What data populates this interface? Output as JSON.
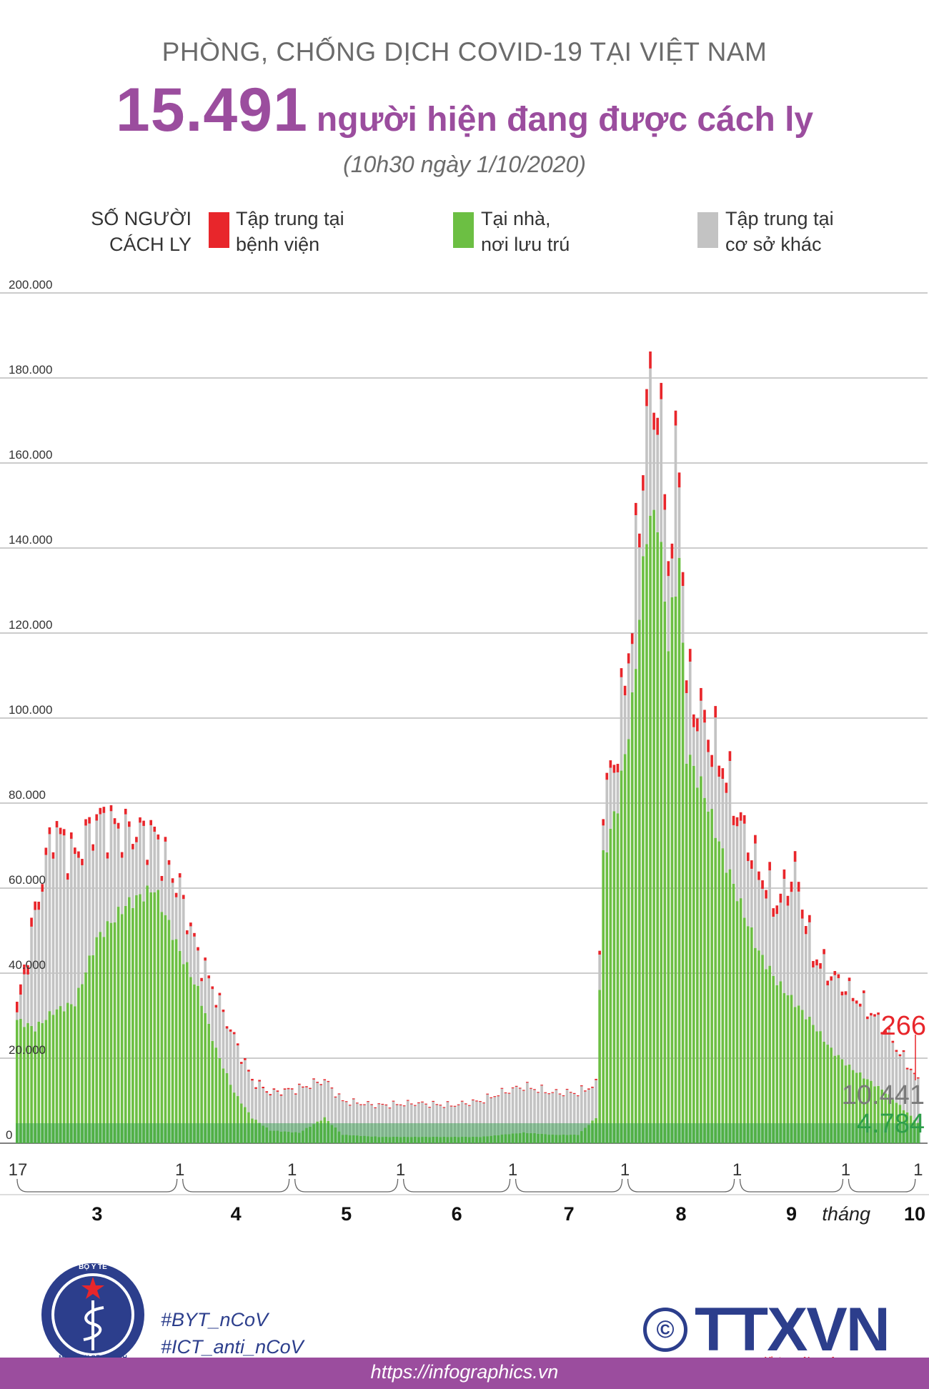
{
  "header": {
    "kicker": "PHÒNG, CHỐNG DỊCH COVID-19 TẠI VIỆT NAM",
    "headline_number": "15.491",
    "headline_text": "người hiện đang được cách ly",
    "timestamp": "(10h30 ngày 1/10/2020)"
  },
  "legend": {
    "ylabel_line1": "SỐ NGƯỜI",
    "ylabel_line2": "CÁCH LY",
    "items": [
      {
        "line1": "Tập trung tại",
        "line2": "bệnh viện",
        "color": "#e8262b"
      },
      {
        "line1": "Tại nhà,",
        "line2": "nơi lưu trú",
        "color": "#6cbf43"
      },
      {
        "line1": "Tập trung tại",
        "line2": "cơ sở khác",
        "color": "#c3c3c3"
      }
    ]
  },
  "chart_data": {
    "type": "bar",
    "stacked": true,
    "ylim": [
      0,
      200000
    ],
    "yticks": [
      "0",
      "20.000",
      "40.000",
      "60.000",
      "80.000",
      "100.000",
      "120.000",
      "140.000",
      "160.000",
      "180.000",
      "200.000"
    ],
    "grid": true,
    "x_start_label": "17",
    "month_start_label": "1",
    "months": [
      "3",
      "4",
      "5",
      "6",
      "7",
      "8",
      "9"
    ],
    "last_month_prefix": "tháng",
    "last_month": "10",
    "series_names": [
      "Tập trung tại bệnh viện",
      "Tại nhà, nơi lưu trú",
      "Tập trung tại cơ sở khác"
    ],
    "anchors": [
      {
        "day": 0,
        "total": 32000,
        "green": 29000,
        "red": 2500
      },
      {
        "day": 5,
        "total": 55000,
        "green": 27000,
        "red": 2000
      },
      {
        "day": 10,
        "total": 75000,
        "green": 31000,
        "red": 1500
      },
      {
        "day": 16,
        "total": 68000,
        "green": 33000,
        "red": 1500
      },
      {
        "day": 22,
        "total": 77000,
        "green": 48000,
        "red": 1500
      },
      {
        "day": 30,
        "total": 74000,
        "green": 56000,
        "red": 1300
      },
      {
        "day": 38,
        "total": 73000,
        "green": 60000,
        "red": 1200
      },
      {
        "day": 45,
        "total": 60000,
        "green": 45000,
        "red": 1000
      },
      {
        "day": 50,
        "total": 45000,
        "green": 36000,
        "red": 800
      },
      {
        "day": 55,
        "total": 35000,
        "green": 22000,
        "red": 600
      },
      {
        "day": 60,
        "total": 25000,
        "green": 12000,
        "red": 500
      },
      {
        "day": 65,
        "total": 15000,
        "green": 6000,
        "red": 400
      },
      {
        "day": 70,
        "total": 12000,
        "green": 3000,
        "red": 300
      },
      {
        "day": 78,
        "total": 13000,
        "green": 2500,
        "red": 250
      },
      {
        "day": 85,
        "total": 15000,
        "green": 6000,
        "red": 250
      },
      {
        "day": 90,
        "total": 10000,
        "green": 2000,
        "red": 200
      },
      {
        "day": 100,
        "total": 9000,
        "green": 1500,
        "red": 200
      },
      {
        "day": 110,
        "total": 9500,
        "green": 1500,
        "red": 200
      },
      {
        "day": 120,
        "total": 9000,
        "green": 1500,
        "red": 200
      },
      {
        "day": 128,
        "total": 10000,
        "green": 1500,
        "red": 200
      },
      {
        "day": 134,
        "total": 12000,
        "green": 2000,
        "red": 200
      },
      {
        "day": 140,
        "total": 13500,
        "green": 2500,
        "red": 200
      },
      {
        "day": 148,
        "total": 12000,
        "green": 2000,
        "red": 200
      },
      {
        "day": 155,
        "total": 12000,
        "green": 2000,
        "red": 200
      },
      {
        "day": 160,
        "total": 14000,
        "green": 6000,
        "red": 300
      },
      {
        "day": 162,
        "total": 80000,
        "green": 67000,
        "red": 1500
      },
      {
        "day": 166,
        "total": 95000,
        "green": 80000,
        "red": 2000
      },
      {
        "day": 170,
        "total": 125000,
        "green": 103000,
        "red": 2500
      },
      {
        "day": 174,
        "total": 175000,
        "green": 145000,
        "red": 4000
      },
      {
        "day": 177,
        "total": 180000,
        "green": 148000,
        "red": 4000
      },
      {
        "day": 180,
        "total": 140000,
        "green": 118000,
        "red": 3500
      },
      {
        "day": 183,
        "total": 165000,
        "green": 138000,
        "red": 3500
      },
      {
        "day": 185,
        "total": 110000,
        "green": 92000,
        "red": 3000
      },
      {
        "day": 190,
        "total": 100000,
        "green": 82000,
        "red": 3000
      },
      {
        "day": 195,
        "total": 90000,
        "green": 68000,
        "red": 2500
      },
      {
        "day": 200,
        "total": 76000,
        "green": 56000,
        "red": 2000
      },
      {
        "day": 205,
        "total": 65000,
        "green": 45000,
        "red": 2000
      },
      {
        "day": 210,
        "total": 57000,
        "green": 38000,
        "red": 2000
      },
      {
        "day": 215,
        "total": 65000,
        "green": 33000,
        "red": 2500
      },
      {
        "day": 220,
        "total": 45000,
        "green": 28000,
        "red": 1500
      },
      {
        "day": 225,
        "total": 40000,
        "green": 22000,
        "red": 1000
      },
      {
        "day": 230,
        "total": 36000,
        "green": 18000,
        "red": 800
      },
      {
        "day": 235,
        "total": 32000,
        "green": 15000,
        "red": 600
      },
      {
        "day": 240,
        "total": 27000,
        "green": 12000,
        "red": 500
      },
      {
        "day": 245,
        "total": 20000,
        "green": 8000,
        "red": 400
      },
      {
        "day": 249,
        "total": 15491,
        "green": 4784,
        "red": 266
      }
    ],
    "last_values": {
      "hospital": "266",
      "other": "10.441",
      "home": "4.784"
    }
  },
  "footer": {
    "logo_top": "BỘ Y TẾ",
    "logo_bottom": "MINISTRY OF HEALTH",
    "hashtag1": "#BYT_nCoV",
    "hashtag2": "#ICT_anti_nCoV",
    "url": "https://infographics.vn",
    "agency_logo": "TTXVN",
    "agency_name": "Vietnam News Agency",
    "copyright": "©"
  },
  "colors": {
    "accent": "#9b4d9e",
    "hospital": "#e8262b",
    "home": "#6cbf43",
    "home_dark": "#2e9e4a",
    "other": "#c3c3c3"
  }
}
